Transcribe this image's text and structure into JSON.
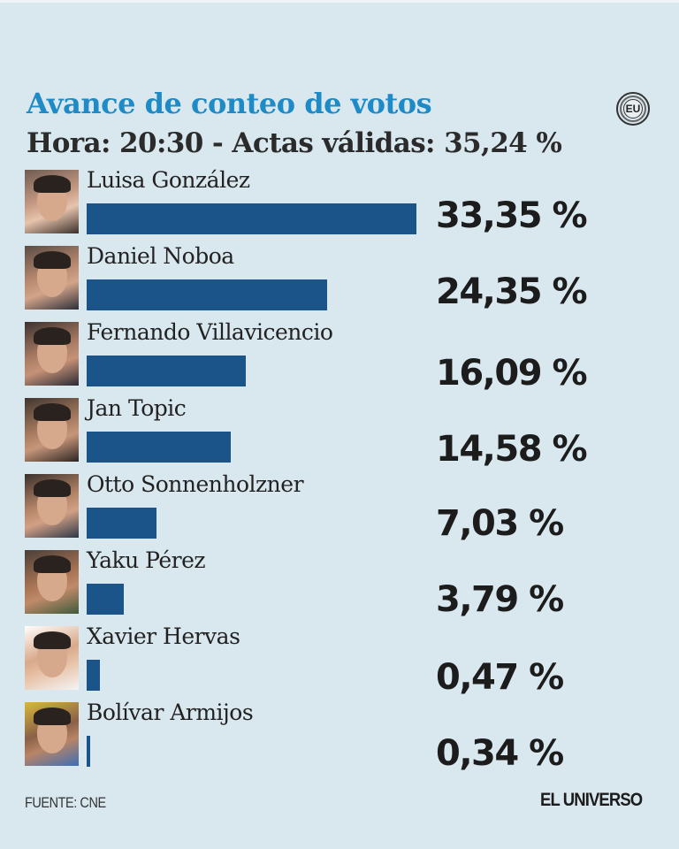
{
  "header": {
    "title": "Avance de conteo de votos",
    "subtitle": "Hora: 20:30 - Actas válidas: 35,24 %",
    "logo_badge": "EU"
  },
  "candidates": [
    {
      "name": "Luisa González",
      "pct_label": "33,35 %",
      "value": 33.35
    },
    {
      "name": "Daniel Noboa",
      "pct_label": "24,35 %",
      "value": 24.35
    },
    {
      "name": "Fernando Villavicencio",
      "pct_label": "16,09 %",
      "value": 16.09
    },
    {
      "name": "Jan Topic",
      "pct_label": "14,58 %",
      "value": 14.58
    },
    {
      "name": "Otto Sonnenholzner",
      "pct_label": "7,03 %",
      "value": 7.03
    },
    {
      "name": "Yaku Pérez",
      "pct_label": "3,79 %",
      "value": 3.79
    },
    {
      "name": "Xavier Hervas",
      "pct_label": "0,47 %",
      "value": 0.47
    },
    {
      "name": "Bolívar Armijos",
      "pct_label": "0,34 %",
      "value": 0.34
    }
  ],
  "footer": {
    "source": "FUENTE: CNE",
    "brand": "EL UNIVERSO"
  },
  "colors": {
    "background": "#d9e7ef",
    "title": "#1e8ac6",
    "bar": "#1b5489",
    "text": "#222222"
  },
  "chart_data": {
    "type": "bar",
    "orientation": "horizontal",
    "title": "Avance de conteo de votos",
    "subtitle": "Hora: 20:30 - Actas válidas: 35,24 %",
    "categories": [
      "Luisa González",
      "Daniel Noboa",
      "Fernando Villavicencio",
      "Jan Topic",
      "Otto Sonnenholzner",
      "Yaku Pérez",
      "Xavier Hervas",
      "Bolívar Armijos"
    ],
    "values": [
      33.35,
      24.35,
      16.09,
      14.58,
      7.03,
      3.79,
      0.47,
      0.34
    ],
    "value_labels": [
      "33,35 %",
      "24,35 %",
      "16,09 %",
      "14,58 %",
      "7,03 %",
      "3,79 %",
      "0,47 %",
      "0,34 %"
    ],
    "unit": "%",
    "xlabel": "",
    "ylabel": "",
    "grid": false,
    "legend": "none",
    "source": "FUENTE: CNE"
  }
}
